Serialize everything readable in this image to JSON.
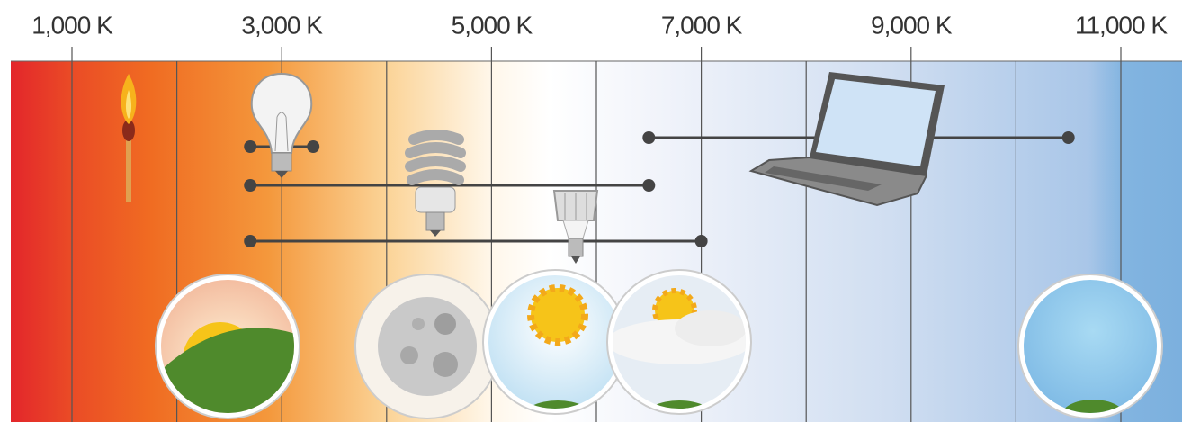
{
  "scale": {
    "ticks": [
      {
        "value": 1000,
        "label": "1,000 K"
      },
      {
        "value": 3000,
        "label": "3,000 K"
      },
      {
        "value": 5000,
        "label": "5,000 K"
      },
      {
        "value": 7000,
        "label": "7,000 K"
      },
      {
        "value": 9000,
        "label": "9,000 K"
      },
      {
        "value": 11000,
        "label": "11,000 K"
      }
    ],
    "minor_ticks": [
      2000,
      4000,
      6000,
      8000,
      10000
    ]
  },
  "ranges": [
    {
      "start": 2700,
      "end": 3300
    },
    {
      "start": 2700,
      "end": 6500
    },
    {
      "start": 2700,
      "end": 7000
    },
    {
      "start": 6500,
      "end": 10500
    }
  ]
}
